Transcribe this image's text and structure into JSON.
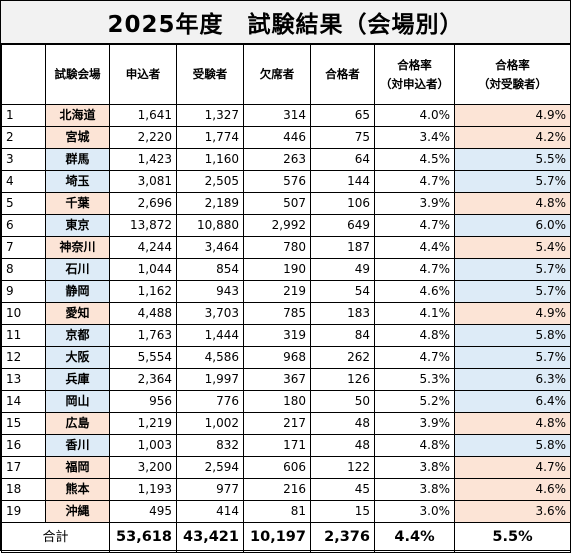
{
  "title": "2025年度　試験結果（会場別）",
  "colors": {
    "pink": "#fce4d6",
    "blue": "#ddebf7"
  },
  "headers": {
    "venue": "試験会場",
    "applicants": "申込者",
    "examinees": "受験者",
    "absentees": "欠席者",
    "passers": "合格者",
    "rate_applicants_line1": "合格率",
    "rate_applicants_line2": "（対申込者）",
    "rate_examinees_line1": "合格率",
    "rate_examinees_line2": "（対受験者）"
  },
  "rows": [
    {
      "no": "1",
      "venue": "北海道",
      "applicants": "1,641",
      "examinees": "1,327",
      "absentees": "314",
      "passers": "65",
      "rate_app": "4.0%",
      "rate_exam": "4.9%",
      "color": "pink"
    },
    {
      "no": "2",
      "venue": "宮城",
      "applicants": "2,220",
      "examinees": "1,774",
      "absentees": "446",
      "passers": "75",
      "rate_app": "3.4%",
      "rate_exam": "4.2%",
      "color": "pink"
    },
    {
      "no": "3",
      "venue": "群馬",
      "applicants": "1,423",
      "examinees": "1,160",
      "absentees": "263",
      "passers": "64",
      "rate_app": "4.5%",
      "rate_exam": "5.5%",
      "color": "blue"
    },
    {
      "no": "4",
      "venue": "埼玉",
      "applicants": "3,081",
      "examinees": "2,505",
      "absentees": "576",
      "passers": "144",
      "rate_app": "4.7%",
      "rate_exam": "5.7%",
      "color": "blue"
    },
    {
      "no": "5",
      "venue": "千葉",
      "applicants": "2,696",
      "examinees": "2,189",
      "absentees": "507",
      "passers": "106",
      "rate_app": "3.9%",
      "rate_exam": "4.8%",
      "color": "pink"
    },
    {
      "no": "6",
      "venue": "東京",
      "applicants": "13,872",
      "examinees": "10,880",
      "absentees": "2,992",
      "passers": "649",
      "rate_app": "4.7%",
      "rate_exam": "6.0%",
      "color": "blue"
    },
    {
      "no": "7",
      "venue": "神奈川",
      "applicants": "4,244",
      "examinees": "3,464",
      "absentees": "780",
      "passers": "187",
      "rate_app": "4.4%",
      "rate_exam": "5.4%",
      "color": "pink"
    },
    {
      "no": "8",
      "venue": "石川",
      "applicants": "1,044",
      "examinees": "854",
      "absentees": "190",
      "passers": "49",
      "rate_app": "4.7%",
      "rate_exam": "5.7%",
      "color": "blue"
    },
    {
      "no": "9",
      "venue": "静岡",
      "applicants": "1,162",
      "examinees": "943",
      "absentees": "219",
      "passers": "54",
      "rate_app": "4.6%",
      "rate_exam": "5.7%",
      "color": "blue"
    },
    {
      "no": "10",
      "venue": "愛知",
      "applicants": "4,488",
      "examinees": "3,703",
      "absentees": "785",
      "passers": "183",
      "rate_app": "4.1%",
      "rate_exam": "4.9%",
      "color": "pink"
    },
    {
      "no": "11",
      "venue": "京都",
      "applicants": "1,763",
      "examinees": "1,444",
      "absentees": "319",
      "passers": "84",
      "rate_app": "4.8%",
      "rate_exam": "5.8%",
      "color": "blue"
    },
    {
      "no": "12",
      "venue": "大阪",
      "applicants": "5,554",
      "examinees": "4,586",
      "absentees": "968",
      "passers": "262",
      "rate_app": "4.7%",
      "rate_exam": "5.7%",
      "color": "blue"
    },
    {
      "no": "13",
      "venue": "兵庫",
      "applicants": "2,364",
      "examinees": "1,997",
      "absentees": "367",
      "passers": "126",
      "rate_app": "5.3%",
      "rate_exam": "6.3%",
      "color": "blue"
    },
    {
      "no": "14",
      "venue": "岡山",
      "applicants": "956",
      "examinees": "776",
      "absentees": "180",
      "passers": "50",
      "rate_app": "5.2%",
      "rate_exam": "6.4%",
      "color": "blue"
    },
    {
      "no": "15",
      "venue": "広島",
      "applicants": "1,219",
      "examinees": "1,002",
      "absentees": "217",
      "passers": "48",
      "rate_app": "3.9%",
      "rate_exam": "4.8%",
      "color": "pink"
    },
    {
      "no": "16",
      "venue": "香川",
      "applicants": "1,003",
      "examinees": "832",
      "absentees": "171",
      "passers": "48",
      "rate_app": "4.8%",
      "rate_exam": "5.8%",
      "color": "blue"
    },
    {
      "no": "17",
      "venue": "福岡",
      "applicants": "3,200",
      "examinees": "2,594",
      "absentees": "606",
      "passers": "122",
      "rate_app": "3.8%",
      "rate_exam": "4.7%",
      "color": "pink"
    },
    {
      "no": "18",
      "venue": "熊本",
      "applicants": "1,193",
      "examinees": "977",
      "absentees": "216",
      "passers": "45",
      "rate_app": "3.8%",
      "rate_exam": "4.6%",
      "color": "pink"
    },
    {
      "no": "19",
      "venue": "沖縄",
      "applicants": "495",
      "examinees": "414",
      "absentees": "81",
      "passers": "15",
      "rate_app": "3.0%",
      "rate_exam": "3.6%",
      "color": "pink"
    }
  ],
  "total": {
    "label": "合計",
    "applicants": "53,618",
    "examinees": "43,421",
    "absentees": "10,197",
    "passers": "2,376",
    "rate_app": "4.4%",
    "rate_exam": "5.5%"
  }
}
